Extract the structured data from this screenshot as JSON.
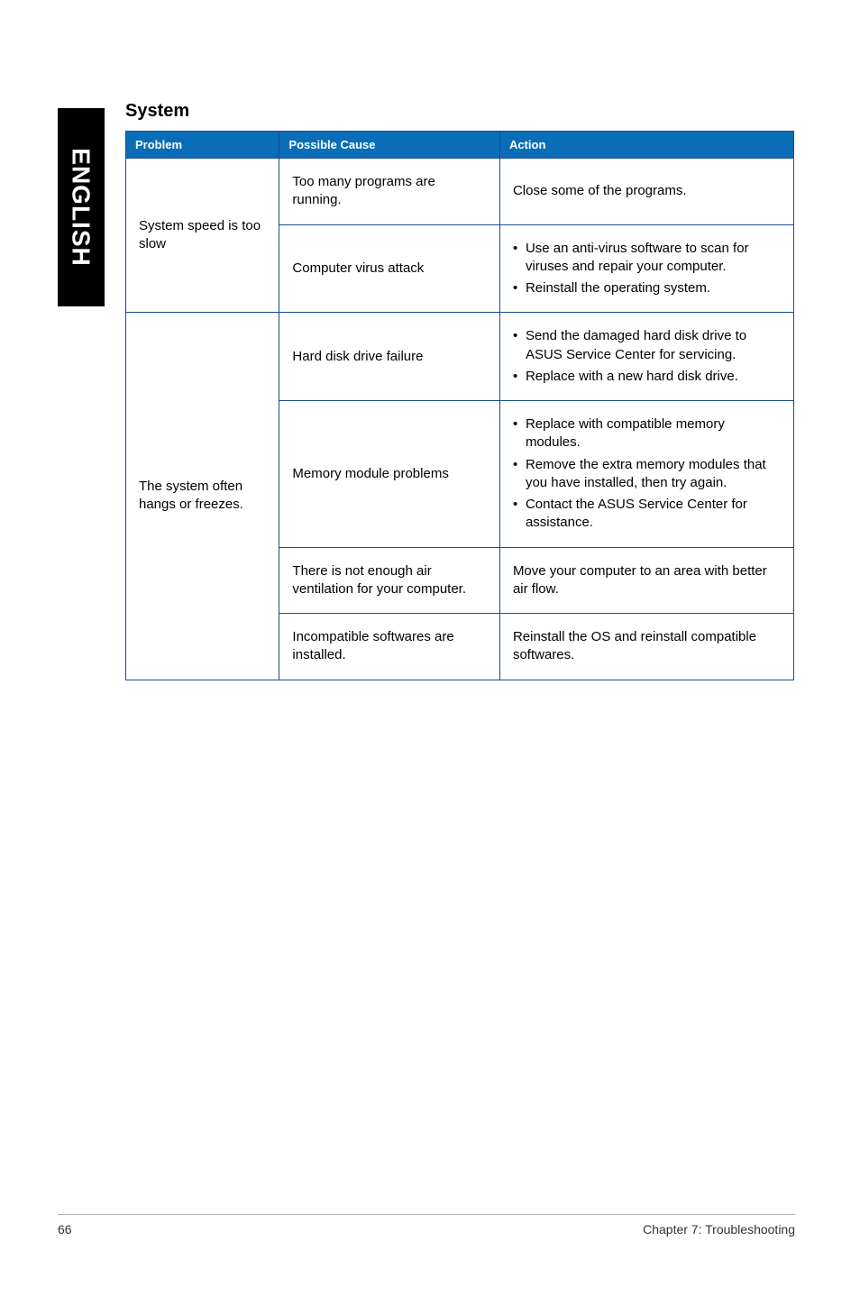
{
  "side_tab": {
    "label": "ENGLISH"
  },
  "section": {
    "title": "System"
  },
  "table": {
    "headers": {
      "problem": "Problem",
      "cause": "Possible Cause",
      "action": "Action"
    },
    "groups": [
      {
        "problem": "System speed is too slow",
        "rows": [
          {
            "cause": "Too many programs are running.",
            "action_text": "Close some of the programs."
          },
          {
            "cause": "Computer virus attack",
            "action_list": [
              "Use an anti-virus software to scan for viruses and repair your computer.",
              "Reinstall the operating system."
            ]
          }
        ]
      },
      {
        "problem": "The system often hangs or freezes.",
        "rows": [
          {
            "cause": "Hard disk drive failure",
            "action_list": [
              "Send the damaged hard disk drive to ASUS Service Center for servicing.",
              "Replace with a new hard disk drive."
            ]
          },
          {
            "cause": "Memory module problems",
            "action_list": [
              "Replace with compatible memory modules.",
              "Remove the extra memory modules that you have installed, then try again.",
              "Contact the ASUS Service Center for assistance."
            ]
          },
          {
            "cause": "There is not enough air ventilation for your computer.",
            "action_text": "Move your computer to an area with better air flow."
          },
          {
            "cause": "Incompatible softwares are installed.",
            "action_text": "Reinstall the OS and reinstall compatible softwares."
          }
        ]
      }
    ]
  },
  "footer": {
    "page": "66",
    "chapter": "Chapter 7: Troubleshooting"
  },
  "colors": {
    "header_bg": "#0a6db7",
    "border": "#1a4d8f",
    "side_tab_bg": "#000000",
    "side_tab_fg": "#ffffff",
    "footer_rule": "#b0b0b0"
  }
}
